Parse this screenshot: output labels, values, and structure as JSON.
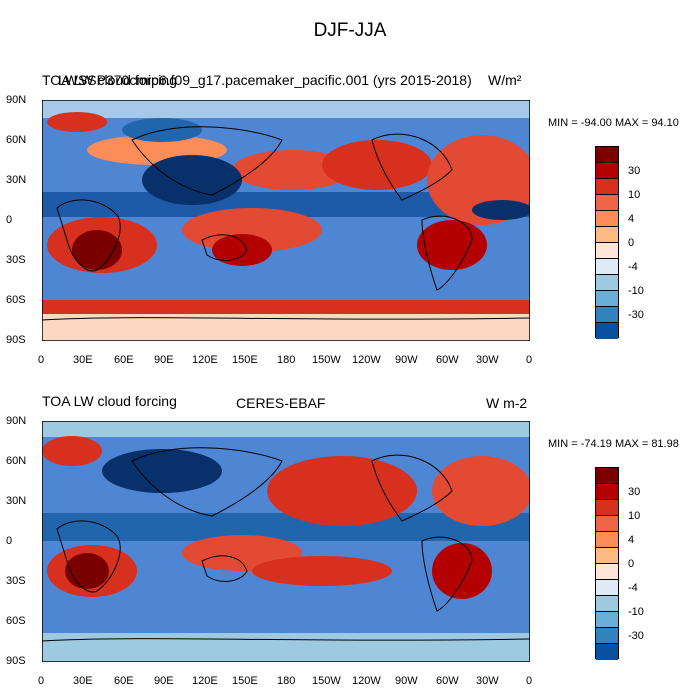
{
  "title": "DJF-JJA",
  "colors": {
    "levels": [
      "#7a0000",
      "#b30000",
      "#d7301f",
      "#ef6548",
      "#fc8d59",
      "#fdbb84",
      "#fee5d9",
      "#f7fbff",
      "#deebf7",
      "#9ecae1",
      "#6baed6",
      "#3182bd",
      "#08519c",
      "#08306b"
    ]
  },
  "axes": {
    "y_ticks": [
      "90N",
      "60N",
      "30N",
      "0",
      "30S",
      "60S",
      "90S"
    ],
    "x_ticks": [
      "0",
      "30E",
      "60E",
      "90E",
      "120E",
      "150E",
      "180",
      "150W",
      "120W",
      "90W",
      "60W",
      "30W",
      "0"
    ]
  },
  "colorbar_labels": [
    "30",
    "10",
    "4",
    "0",
    "-4",
    "-10",
    "-30"
  ],
  "panels": [
    {
      "left_title": "TOA LW cloud forcing",
      "overlay_title": "LWSSP370cmip6.f09_g17.pacemaker_pacific.001 (yrs 2015-2018)",
      "units": "W/m²",
      "min_max": "MIN = -94.00 MAX =  94.10"
    },
    {
      "left_title": "TOA LW cloud forcing",
      "center_title": "CERES-EBAF",
      "units": "W m-2",
      "min_max": "MIN = -74.19 MAX =  81.98"
    }
  ]
}
